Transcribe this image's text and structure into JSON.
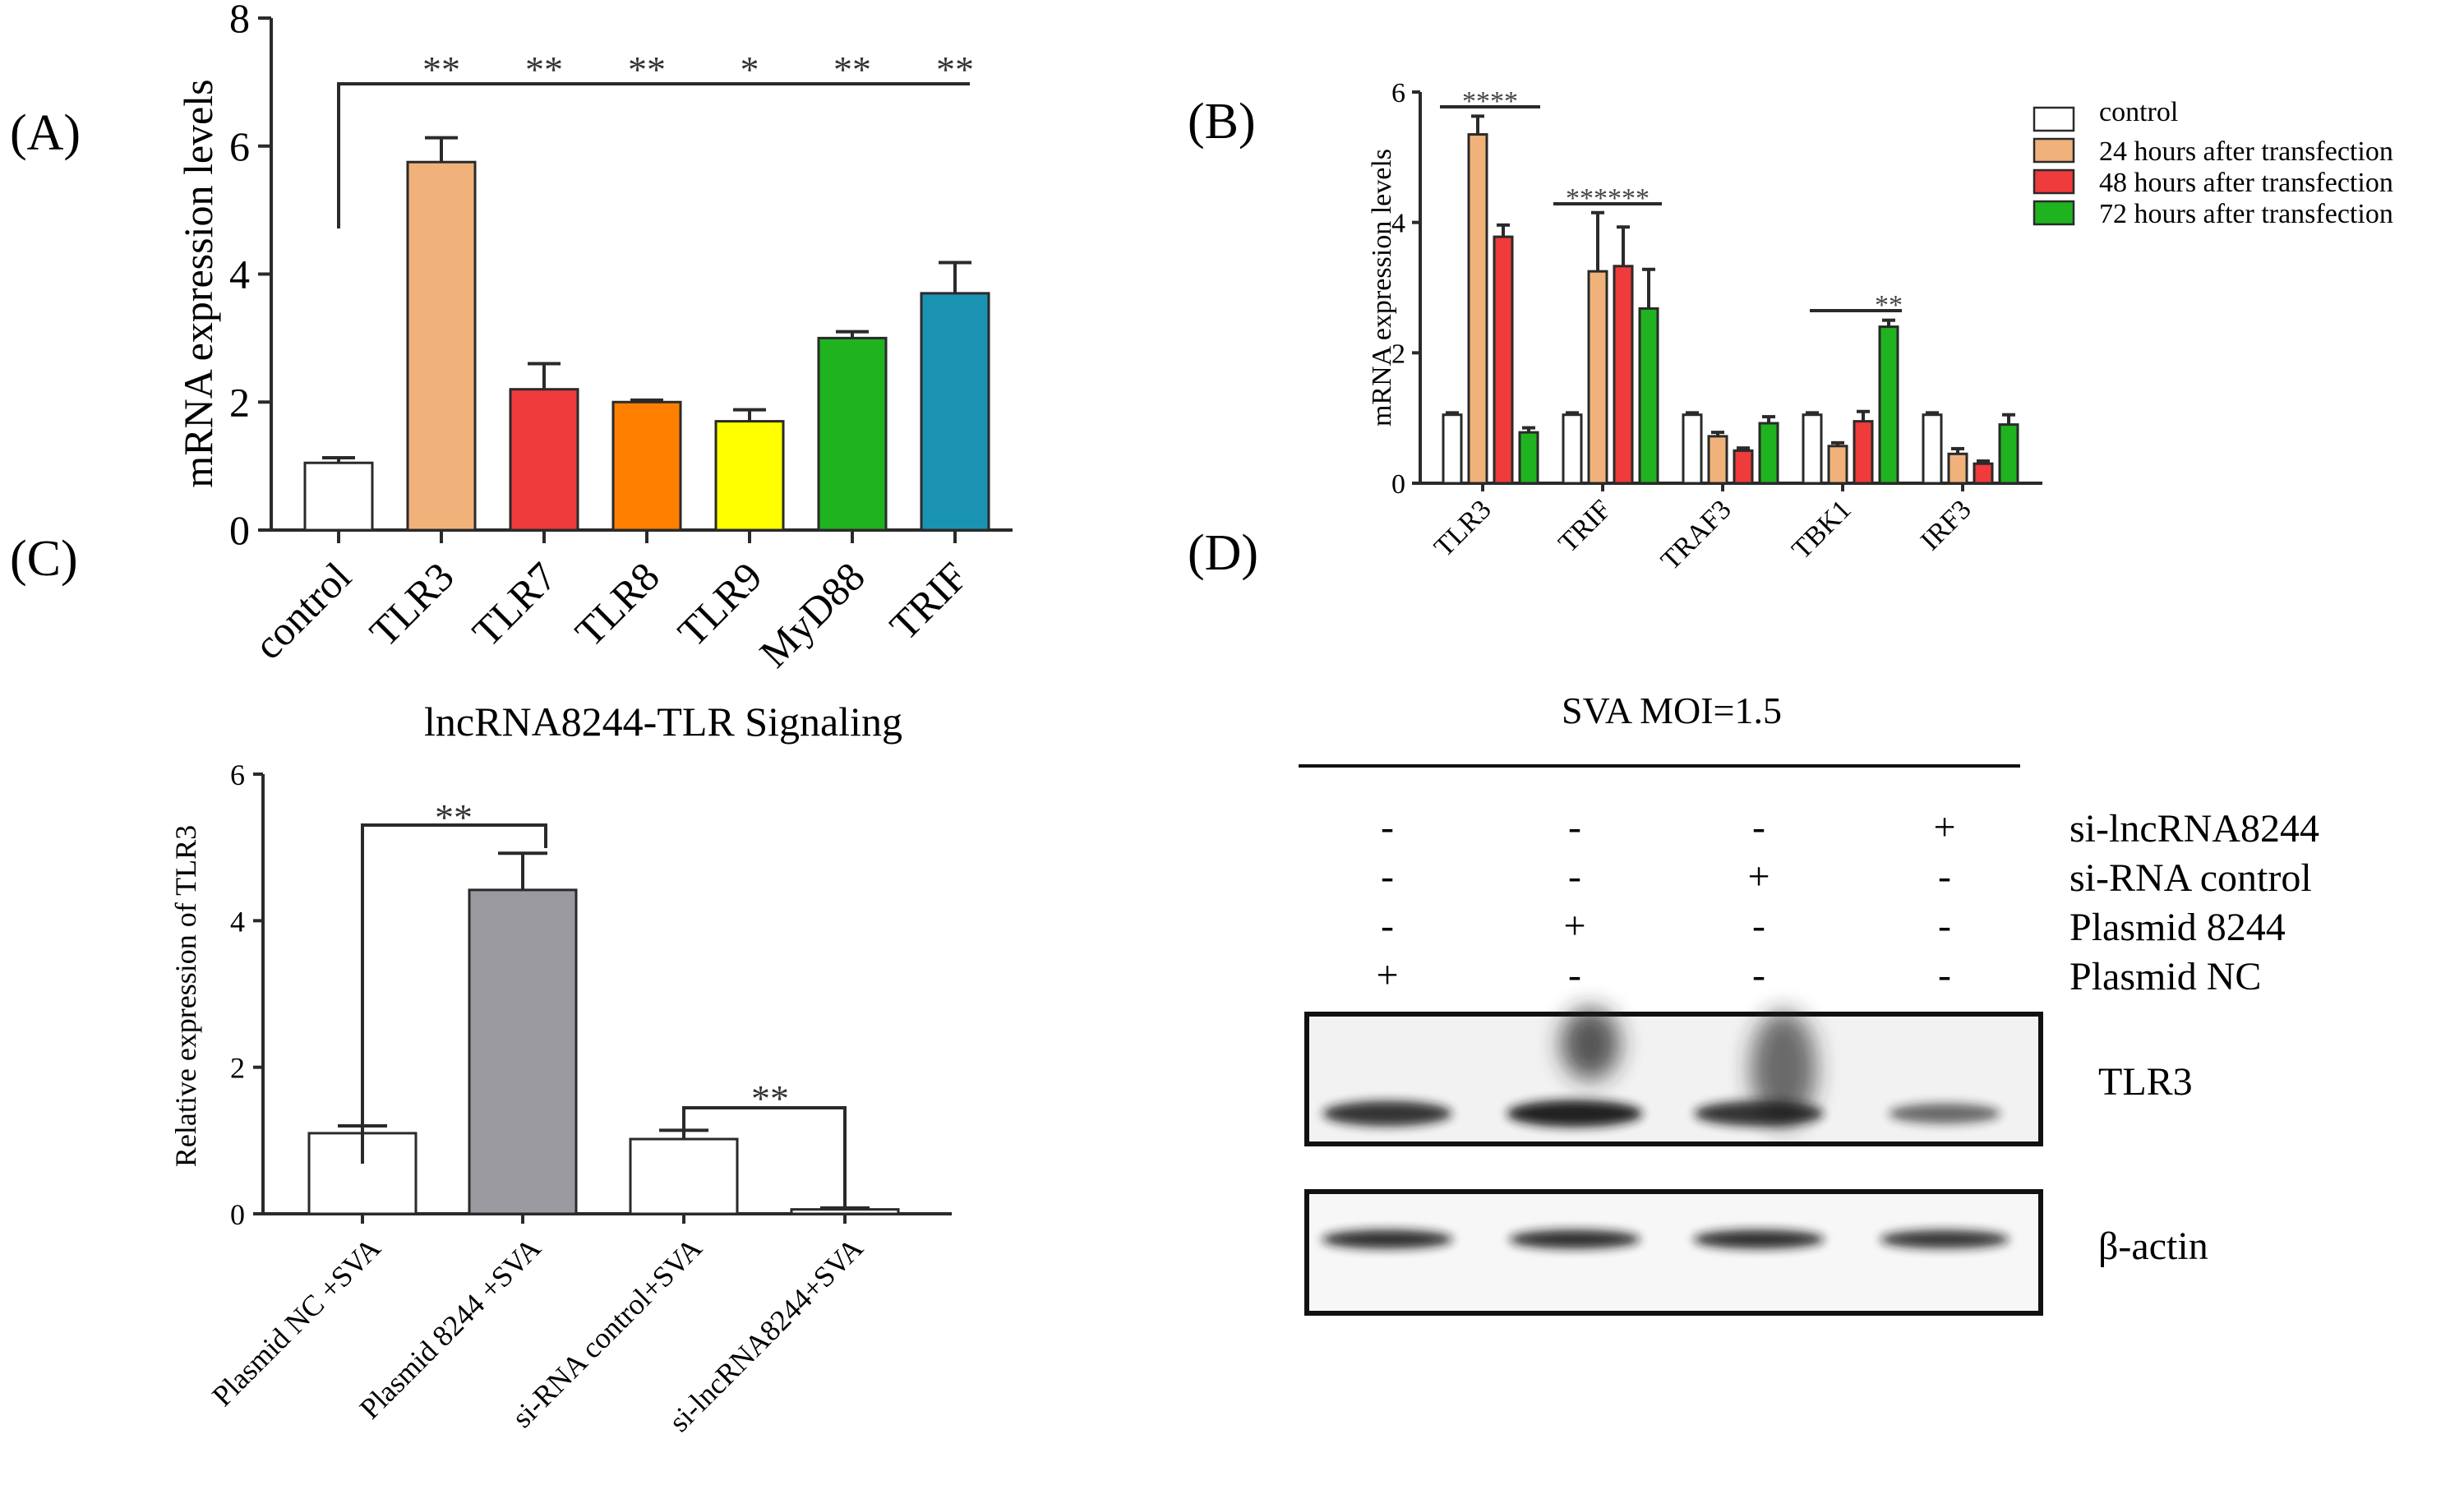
{
  "panel_labels": {
    "A": "(A)",
    "B": "(B)",
    "C": "(C)",
    "D": "(D)"
  },
  "colors": {
    "control": "#ffffff",
    "h24": "#f0b27a",
    "h48": "#ef3b3b",
    "h72": "#1fb31f",
    "tlr8": "#ff7f00",
    "tlr9": "#ffff00",
    "trif_a": "#1a93b3",
    "plasmid8244": "#9a9aa0"
  },
  "chart_data": [
    {
      "id": "A",
      "type": "bar",
      "title": "lncRNA8244-TLR Signaling",
      "ylabel": "mRNA expression levels",
      "xlabel": "",
      "ylim": [
        0,
        8
      ],
      "yticks": [
        "0",
        "2",
        "4",
        "6",
        "8"
      ],
      "categories": [
        "control",
        "TLR3",
        "TLR7",
        "TLR8",
        "TLR9",
        "MyD88",
        "TRIF"
      ],
      "values": [
        1.05,
        5.75,
        2.2,
        2.0,
        1.7,
        3.0,
        3.7
      ],
      "errors": [
        0.08,
        0.38,
        0.4,
        0.03,
        0.18,
        0.1,
        0.48
      ],
      "colors": [
        "#ffffff",
        "#f0b27a",
        "#ef3b3b",
        "#ff7f00",
        "#ffff00",
        "#1fb31f",
        "#1a93b3"
      ],
      "significance": [
        "",
        "**",
        "**",
        "**",
        "*",
        "**",
        "**"
      ],
      "grid": false
    },
    {
      "id": "B",
      "type": "bar",
      "ylabel": "mRNA expression levels",
      "ylim": [
        0,
        6
      ],
      "yticks": [
        "0",
        "2",
        "4",
        "6"
      ],
      "categories": [
        "TLR3",
        "TRIF",
        "TRAF3",
        "TBK1",
        "IRF3"
      ],
      "series": [
        {
          "name": "control",
          "values": [
            1.05,
            1.05,
            1.05,
            1.05,
            1.05
          ],
          "errors": [
            0.03,
            0.03,
            0.03,
            0.03,
            0.03
          ]
        },
        {
          "name": "24 hours after transfection",
          "values": [
            5.35,
            3.25,
            0.72,
            0.57,
            0.45
          ],
          "errors": [
            0.28,
            0.9,
            0.06,
            0.05,
            0.08
          ]
        },
        {
          "name": "48 hours after transfection",
          "values": [
            3.78,
            3.33,
            0.5,
            0.95,
            0.3
          ],
          "errors": [
            0.18,
            0.6,
            0.04,
            0.15,
            0.04
          ]
        },
        {
          "name": "72 hours after transfection",
          "values": [
            0.78,
            2.68,
            0.92,
            2.4,
            0.9
          ],
          "errors": [
            0.07,
            0.6,
            0.1,
            0.1,
            0.15
          ]
        }
      ],
      "significance": [
        {
          "text": "****",
          "category": 0
        },
        {
          "text": "******",
          "category": 1
        },
        {
          "text": "**",
          "category": 3
        }
      ],
      "legend": "right",
      "grid": false
    },
    {
      "id": "C",
      "type": "bar",
      "ylabel": "Relative expression of TLR3",
      "ylim": [
        0,
        6
      ],
      "yticks": [
        "0",
        "2",
        "4",
        "6"
      ],
      "categories": [
        "Plasmid NC +SVA",
        "Plasmid 8244 +SVA",
        "si-RNA control+SVA",
        "si-lncRNA8244+SVA"
      ],
      "values": [
        1.1,
        4.42,
        1.02,
        0.06
      ],
      "errors": [
        0.1,
        0.5,
        0.12,
        0.02
      ],
      "colors": [
        "#ffffff",
        "#9a9aa0",
        "#ffffff",
        "#ffffff"
      ],
      "significance": [
        {
          "text": "**",
          "pair": [
            0,
            1
          ]
        },
        {
          "text": "**",
          "pair": [
            2,
            3
          ]
        }
      ],
      "grid": false
    }
  ],
  "western_blot": {
    "header": "SVA MOI=1.5",
    "rows": [
      {
        "label": "si-lncRNA8244",
        "signs": [
          "-",
          "-",
          "-",
          "+"
        ]
      },
      {
        "label": "si-RNA control",
        "signs": [
          "-",
          "-",
          "+",
          "-"
        ]
      },
      {
        "label": "Plasmid 8244",
        "signs": [
          "-",
          "+",
          "-",
          "-"
        ]
      },
      {
        "label": "Plasmid NC",
        "signs": [
          "+",
          "-",
          "-",
          "-"
        ]
      }
    ],
    "bands": [
      {
        "label": "TLR3",
        "intensity": [
          0.85,
          1.0,
          0.85,
          0.45
        ]
      },
      {
        "label": "β-actin",
        "intensity": [
          0.9,
          0.9,
          0.9,
          0.85
        ]
      }
    ]
  }
}
